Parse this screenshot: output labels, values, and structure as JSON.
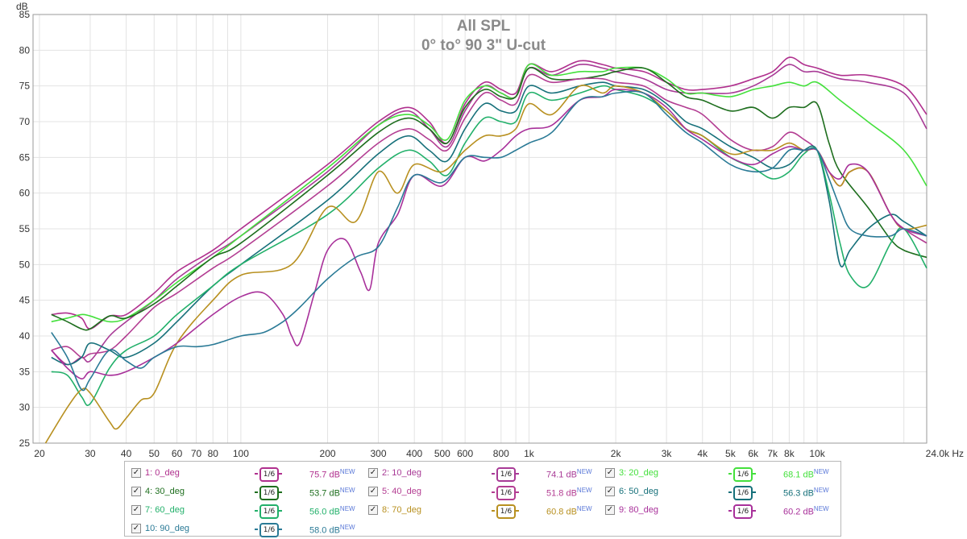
{
  "chart_data": {
    "type": "line",
    "title": "All SPL",
    "subtitle": "0° to° 90 3\" U-cut",
    "ylabel": "dB",
    "x_unit_label": "24.0k Hz",
    "x_scale": "log",
    "xlim": [
      19,
      24000
    ],
    "ylim": [
      25,
      85
    ],
    "grid": true,
    "y_ticks": [
      25,
      30,
      35,
      40,
      45,
      50,
      55,
      60,
      65,
      70,
      75,
      80,
      85
    ],
    "x_ticks": [
      {
        "v": 20,
        "label": "20"
      },
      {
        "v": 30,
        "label": "30"
      },
      {
        "v": 40,
        "label": "40"
      },
      {
        "v": 50,
        "label": "50"
      },
      {
        "v": 60,
        "label": "60"
      },
      {
        "v": 70,
        "label": "70"
      },
      {
        "v": 80,
        "label": "80"
      },
      {
        "v": 100,
        "label": "100"
      },
      {
        "v": 200,
        "label": "200"
      },
      {
        "v": 300,
        "label": "300"
      },
      {
        "v": 400,
        "label": "400"
      },
      {
        "v": 500,
        "label": "500"
      },
      {
        "v": 600,
        "label": "600"
      },
      {
        "v": 800,
        "label": "800"
      },
      {
        "v": 1000,
        "label": "1k"
      },
      {
        "v": 2000,
        "label": "2k"
      },
      {
        "v": 3000,
        "label": "3k"
      },
      {
        "v": 4000,
        "label": "4k"
      },
      {
        "v": 5000,
        "label": "5k"
      },
      {
        "v": 6000,
        "label": "6k"
      },
      {
        "v": 7000,
        "label": "7k"
      },
      {
        "v": 8000,
        "label": "8k"
      },
      {
        "v": 10000,
        "label": "10k"
      }
    ],
    "x_minor_grid": [
      90,
      900,
      9000,
      20000
    ],
    "series": [
      {
        "name": "1: 0_deg",
        "color": "#b0308e",
        "legend_value": "75.7 dB",
        "x": [
          22,
          25,
          28,
          30,
          35,
          40,
          50,
          60,
          80,
          100,
          200,
          300,
          380,
          450,
          520,
          600,
          700,
          800,
          900,
          1000,
          1200,
          1500,
          1800,
          2000,
          2500,
          3000,
          3500,
          4000,
          5000,
          6000,
          7000,
          8000,
          9000,
          10000,
          12000,
          15000,
          20000,
          24000
        ],
        "y": [
          43,
          43.2,
          42.5,
          41,
          42.8,
          43,
          46,
          49,
          52,
          55,
          64,
          70,
          72,
          70,
          67,
          72.5,
          75.5,
          74.5,
          74,
          78,
          77,
          78.5,
          78,
          77.5,
          77,
          75.5,
          74.5,
          74.5,
          75,
          76,
          77,
          79,
          78,
          77.5,
          76.5,
          76.5,
          75,
          71
        ]
      },
      {
        "name": "2: 10_deg",
        "color": "#a83a96",
        "legend_value": "74.1 dB",
        "x": [
          22,
          25,
          28,
          30,
          35,
          40,
          50,
          60,
          80,
          100,
          200,
          300,
          380,
          450,
          520,
          600,
          700,
          800,
          900,
          1000,
          1200,
          1500,
          1800,
          2000,
          2500,
          3000,
          3500,
          4000,
          5000,
          6000,
          7000,
          8000,
          9000,
          10000,
          12000,
          15000,
          20000,
          24000
        ],
        "y": [
          38,
          36,
          37,
          36.5,
          40,
          42,
          45,
          48,
          51.5,
          54,
          63,
          69.5,
          71.5,
          69,
          66.5,
          71.5,
          75,
          74,
          73.5,
          77.5,
          76.5,
          78,
          77.5,
          77,
          76,
          74.5,
          74,
          74,
          74,
          75,
          76.5,
          78,
          77,
          77,
          76,
          75.5,
          74,
          69
        ]
      },
      {
        "name": "3: 20_deg",
        "color": "#44e03c",
        "legend_value": "68.1 dB",
        "x": [
          22,
          25,
          28,
          30,
          35,
          40,
          50,
          60,
          80,
          100,
          200,
          300,
          380,
          450,
          520,
          600,
          700,
          800,
          900,
          1000,
          1200,
          1500,
          1800,
          2000,
          2500,
          3000,
          3500,
          4000,
          5000,
          6000,
          7000,
          8000,
          9000,
          10000,
          12000,
          15000,
          20000,
          24000
        ],
        "y": [
          42,
          42.5,
          43,
          42.8,
          42,
          42.5,
          45,
          47.5,
          51,
          54,
          63.5,
          69.5,
          71,
          69.5,
          67.5,
          73,
          75,
          74,
          73.5,
          78,
          76.5,
          77,
          77,
          77.5,
          77.5,
          76,
          74,
          74,
          73.5,
          74.5,
          75,
          75.5,
          75,
          75.5,
          73,
          70,
          66,
          61
        ]
      },
      {
        "name": "4: 30_deg",
        "color": "#1e6e1e",
        "legend_value": "53.7 dB",
        "x": [
          22,
          25,
          28,
          30,
          35,
          40,
          50,
          60,
          80,
          100,
          200,
          300,
          380,
          450,
          520,
          600,
          700,
          800,
          900,
          1000,
          1200,
          1500,
          1800,
          2000,
          2500,
          3000,
          3500,
          4000,
          5000,
          6000,
          7000,
          8000,
          9000,
          10000,
          11000,
          12000,
          15000,
          18000,
          20000,
          24000
        ],
        "y": [
          43,
          42,
          41,
          41,
          42.8,
          42.5,
          44.5,
          47,
          51,
          53,
          62.5,
          68.5,
          70.5,
          69,
          67,
          72,
          74.5,
          73.5,
          73.5,
          77.5,
          76,
          76,
          76.5,
          77,
          77.5,
          75.5,
          73.5,
          73,
          71.5,
          72,
          70.5,
          72,
          72,
          72.5,
          67,
          63,
          58,
          53.5,
          52,
          51
        ]
      },
      {
        "name": "5: 40_deg",
        "color": "#b33d92",
        "legend_value": "51.8 dB",
        "x": [
          22,
          25,
          28,
          30,
          35,
          40,
          50,
          60,
          80,
          100,
          200,
          300,
          380,
          450,
          520,
          600,
          700,
          800,
          900,
          1000,
          1200,
          1500,
          1800,
          2000,
          2500,
          3000,
          3500,
          4000,
          5000,
          6000,
          7000,
          8000,
          9000,
          10000,
          11000,
          12000,
          13000,
          15000,
          18000,
          20000,
          24000
        ],
        "y": [
          38,
          38.5,
          37,
          37.5,
          38,
          40,
          44,
          46,
          49.5,
          52,
          61,
          67,
          69,
          67.5,
          66,
          70.5,
          74,
          73,
          72.5,
          76.5,
          75.5,
          76,
          76,
          75.5,
          75,
          73,
          72,
          71,
          67.5,
          66,
          66.5,
          68.5,
          67.5,
          66,
          63,
          61,
          63,
          63,
          57,
          55,
          53
        ]
      },
      {
        "name": "6: 50_deg",
        "color": "#16707a",
        "legend_value": "56.3 dB",
        "x": [
          22,
          25,
          28,
          30,
          35,
          40,
          50,
          60,
          80,
          100,
          200,
          300,
          380,
          450,
          520,
          600,
          700,
          800,
          900,
          1000,
          1200,
          1500,
          1800,
          2000,
          2500,
          3000,
          3500,
          4000,
          5000,
          6000,
          7000,
          8000,
          9000,
          10000,
          11000,
          12000,
          13000,
          15000,
          18000,
          20000,
          24000
        ],
        "y": [
          37,
          36,
          37,
          39,
          38,
          37,
          39,
          42,
          47,
          50,
          59,
          65.5,
          68,
          66,
          64.5,
          69,
          72.5,
          71.5,
          71.5,
          75,
          74,
          75,
          75.5,
          75,
          74.5,
          72.5,
          70,
          69,
          66.5,
          65,
          63.5,
          64,
          66,
          66,
          59,
          50,
          52,
          55,
          57,
          56,
          54
        ]
      },
      {
        "name": "7: 60_deg",
        "color": "#22b06a",
        "legend_value": "56.0 dB",
        "x": [
          22,
          25,
          28,
          30,
          35,
          40,
          50,
          60,
          80,
          100,
          200,
          300,
          380,
          450,
          520,
          600,
          700,
          800,
          900,
          1000,
          1200,
          1500,
          1800,
          2000,
          2500,
          3000,
          3500,
          4000,
          5000,
          6000,
          7000,
          8000,
          9000,
          10000,
          11000,
          12000,
          13000,
          15000,
          18000,
          20000,
          24000
        ],
        "y": [
          35,
          34.5,
          31.5,
          30.5,
          35.5,
          38,
          40,
          43,
          47,
          50,
          57,
          63.5,
          66,
          64.5,
          62.5,
          67,
          70.5,
          70,
          70,
          74,
          73,
          74,
          75,
          74.5,
          73.5,
          71.5,
          69,
          68,
          65,
          63.5,
          62,
          63,
          65.5,
          66,
          60,
          53,
          48.5,
          47,
          53,
          55,
          49.5
        ]
      },
      {
        "name": "8: 70_deg",
        "color": "#b89020",
        "legend_value": "60.8 dB",
        "x": [
          21,
          25,
          28,
          30,
          35,
          37,
          40,
          45,
          50,
          60,
          80,
          100,
          150,
          200,
          250,
          300,
          350,
          400,
          500,
          600,
          700,
          800,
          900,
          1000,
          1200,
          1500,
          1800,
          2000,
          2500,
          3000,
          3500,
          4000,
          5000,
          6000,
          7000,
          8000,
          9000,
          10000,
          11000,
          12000,
          13000,
          15000,
          18000,
          20000,
          24000
        ],
        "y": [
          24,
          30,
          32.5,
          32,
          28,
          27,
          28.5,
          31,
          32,
          39,
          45,
          48.5,
          50,
          58,
          56,
          63,
          60,
          64,
          63,
          66,
          68,
          68,
          69,
          72.5,
          71,
          75,
          74,
          75,
          74,
          71.5,
          69,
          68,
          65.5,
          66,
          66,
          67,
          66,
          66,
          63,
          61,
          63,
          63,
          57,
          55,
          55.5
        ]
      },
      {
        "name": "9: 80_deg",
        "color": "#a8309a",
        "legend_value": "60.2 dB",
        "x": [
          22,
          25,
          28,
          30,
          35,
          40,
          50,
          60,
          80,
          100,
          120,
          140,
          150,
          160,
          180,
          200,
          230,
          260,
          280,
          300,
          350,
          400,
          500,
          600,
          700,
          800,
          900,
          1000,
          1200,
          1500,
          1800,
          2000,
          2500,
          3000,
          3500,
          4000,
          5000,
          6000,
          7000,
          8000,
          9000,
          10000,
          11000,
          12000,
          13000,
          15000,
          18000,
          20000,
          24000
        ],
        "y": [
          38,
          35.5,
          34,
          35,
          34.5,
          35,
          37,
          39,
          43,
          45.5,
          46,
          43,
          40,
          39,
          46,
          52,
          53.5,
          49,
          46.5,
          53,
          57,
          62.5,
          61,
          65,
          64.5,
          66,
          68,
          69,
          69.5,
          73,
          73.5,
          74.5,
          74,
          72,
          69,
          67.5,
          65,
          64,
          65.5,
          66.5,
          66,
          66,
          63,
          62,
          64,
          63,
          57,
          55,
          54
        ]
      },
      {
        "name": "10: 90_deg",
        "color": "#2a7a96",
        "legend_value": "58.0 dB",
        "x": [
          22,
          25,
          28,
          30,
          35,
          40,
          45,
          50,
          60,
          70,
          80,
          100,
          120,
          140,
          160,
          200,
          250,
          300,
          350,
          400,
          500,
          600,
          700,
          800,
          900,
          1000,
          1200,
          1500,
          1800,
          2000,
          2500,
          3000,
          3500,
          4000,
          5000,
          6000,
          7000,
          8000,
          9000,
          10000,
          11000,
          12000,
          13000,
          15000,
          18000,
          20000,
          24000
        ],
        "y": [
          40.5,
          37,
          32.5,
          34,
          38,
          36.5,
          35.5,
          37,
          38.5,
          38.5,
          38.8,
          40,
          40.5,
          42,
          44,
          48,
          51,
          52.5,
          58,
          62.5,
          61.5,
          65,
          65,
          65,
          66,
          67,
          68.5,
          73,
          73.5,
          74,
          74,
          71,
          68.5,
          67,
          64,
          63,
          63.5,
          66,
          66,
          66,
          62,
          58,
          55,
          54,
          54,
          55,
          54
        ]
      }
    ]
  },
  "legend": {
    "checkbox_glyph": "✓",
    "smoothing_label": "1/6",
    "new_badge": "NEW"
  }
}
